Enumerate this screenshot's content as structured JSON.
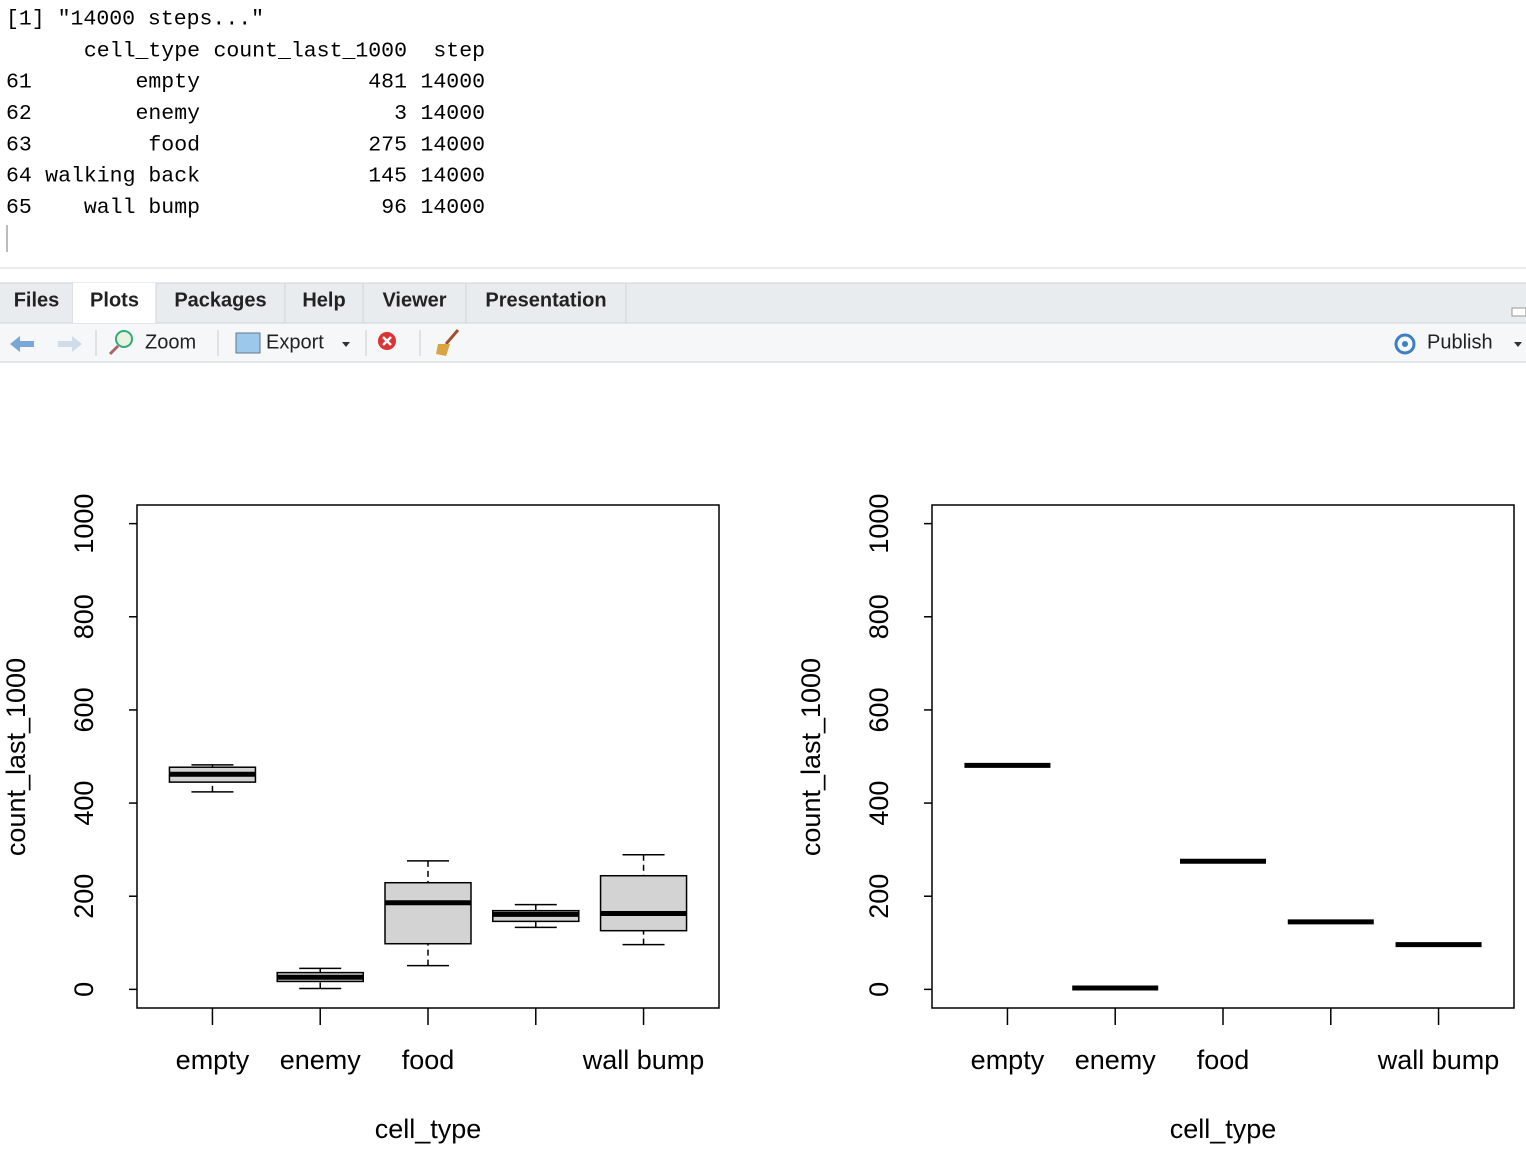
{
  "console": {
    "output": "[1] \"14000 steps...\"",
    "table": {
      "headers": [
        "cell_type",
        "count_last_1000",
        "step"
      ],
      "rows": [
        {
          "name": "61",
          "cells": [
            "empty",
            481,
            14000
          ]
        },
        {
          "name": "62",
          "cells": [
            "enemy",
            3,
            14000
          ]
        },
        {
          "name": "63",
          "cells": [
            "food",
            275,
            14000
          ]
        },
        {
          "name": "64",
          "cells": [
            "walking back",
            145,
            14000
          ]
        },
        {
          "name": "65",
          "cells": [
            "wall bump",
            96,
            14000
          ]
        }
      ]
    }
  },
  "tabs": [
    "Files",
    "Plots",
    "Packages",
    "Help",
    "Viewer",
    "Presentation"
  ],
  "selected_tab": "Plots",
  "toolbar": {
    "zoom": "Zoom",
    "export": "Export",
    "publish": "Publish"
  },
  "chart_data": [
    {
      "type": "boxplot",
      "xlabel": "cell_type",
      "ylabel": "count_last_1000",
      "categories": [
        "empty",
        "enemy",
        "food",
        null,
        "wall bump"
      ],
      "boxes": [
        {
          "min": 424,
          "q1": 445,
          "median": 462,
          "q3": 477,
          "max": 482
        },
        {
          "min": 2,
          "q1": 17,
          "median": 26,
          "q3": 36,
          "max": 45
        },
        {
          "min": 51,
          "q1": 98,
          "median": 186,
          "q3": 229,
          "max": 276
        },
        {
          "min": 133,
          "q1": 146,
          "median": 161,
          "q3": 169,
          "max": 182
        },
        {
          "min": 96,
          "q1": 126,
          "median": 163,
          "q3": 244,
          "max": 289
        }
      ],
      "color": "#d3d3d3",
      "ylim": [
        -40,
        1040
      ],
      "yticks": [
        0,
        200,
        400,
        600,
        800,
        1000
      ]
    },
    {
      "type": "boxplot",
      "xlabel": "cell_type",
      "ylabel": "count_last_1000",
      "categories": [
        "empty",
        "enemy",
        "food",
        null,
        "wall bump"
      ],
      "values": [
        481,
        3,
        275,
        145,
        96
      ],
      "ylim": [
        -40,
        1040
      ],
      "yticks": [
        0,
        200,
        400,
        600,
        800,
        1000
      ]
    }
  ]
}
